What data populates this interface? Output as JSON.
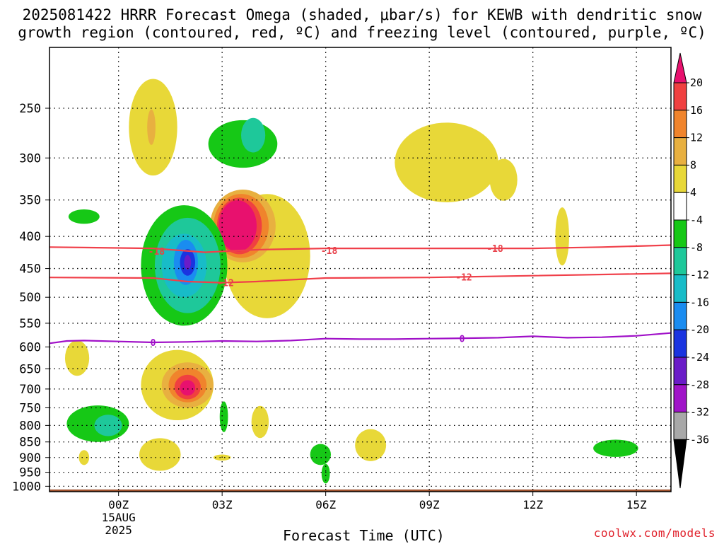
{
  "title_line1": "2025081422 HRRR Forecast Omega (shaded, μbar/s) for KEWB with dendritic snow",
  "title_line2": "growth region (contoured, red, ºC) and freezing level (contoured, purple, ºC)",
  "credit": "coolwx.com/models",
  "chart_data": {
    "type": "contour",
    "xlabel": "Forecast Time (UTC)",
    "x_range_hours": [
      -2,
      16
    ],
    "x_ticks": [
      {
        "hour": 0,
        "label": "00Z",
        "sub": [
          "15AUG",
          "2025"
        ]
      },
      {
        "hour": 3,
        "label": "03Z"
      },
      {
        "hour": 6,
        "label": "06Z"
      },
      {
        "hour": 9,
        "label": "09Z"
      },
      {
        "hour": 12,
        "label": "12Z"
      },
      {
        "hour": 15,
        "label": "15Z"
      }
    ],
    "y_scale": "log-pressure (mb)",
    "y_range_mb": [
      1020,
      200
    ],
    "y_ticks": [
      250,
      300,
      350,
      400,
      450,
      500,
      550,
      600,
      650,
      700,
      750,
      800,
      850,
      900,
      950,
      1000
    ],
    "grid": true,
    "colorbar": {
      "levels": [
        20,
        16,
        12,
        8,
        4,
        -4,
        -8,
        -12,
        -16,
        -20,
        -24,
        -28,
        -32,
        -36
      ],
      "colors": [
        "#e8116e",
        "#f04040",
        "#f0842c",
        "#e8b040",
        "#e8d838",
        "#ffffff",
        "#16c816",
        "#1ec89a",
        "#18bcc8",
        "#1a8cf0",
        "#1a34e0",
        "#6a1cc8",
        "#a014c8",
        "#a8a8a8",
        "#000000"
      ]
    },
    "red_contours": [
      {
        "label": "-18",
        "points": [
          [
            -2,
            416
          ],
          [
            1,
            418
          ],
          [
            2.5,
            424
          ],
          [
            4,
            420
          ],
          [
            6,
            418
          ],
          [
            9,
            418
          ],
          [
            12,
            418
          ],
          [
            14,
            416
          ],
          [
            16,
            413
          ]
        ]
      },
      {
        "label": "-12",
        "points": [
          [
            -2,
            465
          ],
          [
            1,
            466
          ],
          [
            2,
            472
          ],
          [
            3,
            474
          ],
          [
            4,
            472
          ],
          [
            6,
            466
          ],
          [
            9,
            465
          ],
          [
            12,
            462
          ],
          [
            16,
            458
          ]
        ]
      }
    ],
    "purple_contours": [
      {
        "label": "0",
        "points": [
          [
            -2,
            592
          ],
          [
            -1.5,
            587
          ],
          [
            -1,
            586
          ],
          [
            0,
            588
          ],
          [
            1,
            590
          ],
          [
            2,
            589
          ],
          [
            3,
            587
          ],
          [
            4,
            588
          ],
          [
            5,
            586
          ],
          [
            6,
            582
          ],
          [
            7,
            583
          ],
          [
            8,
            583
          ],
          [
            9,
            582
          ],
          [
            10,
            581
          ],
          [
            11,
            580
          ],
          [
            12,
            577
          ],
          [
            13,
            580
          ],
          [
            14,
            579
          ],
          [
            15,
            576
          ],
          [
            16,
            570
          ]
        ]
      }
    ],
    "contour_labels": [
      {
        "text": "-18",
        "hour": 1.1,
        "mb": 422,
        "color": "#e8404a"
      },
      {
        "text": "-18",
        "hour": 6.1,
        "mb": 421,
        "color": "#e8404a"
      },
      {
        "text": "-18",
        "hour": 10.9,
        "mb": 418,
        "color": "#e8404a"
      },
      {
        "text": "-12",
        "hour": 3.1,
        "mb": 474,
        "color": "#e8404a"
      },
      {
        "text": "-12",
        "hour": 10.0,
        "mb": 464,
        "color": "#e8404a"
      },
      {
        "text": "0",
        "hour": 1.0,
        "mb": 590,
        "color": "#a010c8"
      },
      {
        "text": "0",
        "hour": 9.95,
        "mb": 582,
        "color": "#a010c8"
      }
    ],
    "shaded_features": [
      {
        "level": 4,
        "hour": 1.0,
        "mb": 268,
        "rx": 0.7,
        "ry": 52,
        "color": "#e8d838"
      },
      {
        "level": 8,
        "hour": 0.95,
        "mb": 268,
        "rx": 0.12,
        "ry": 18,
        "color": "#e8b040"
      },
      {
        "level": -4,
        "hour": 3.6,
        "mb": 285,
        "rx": 1.0,
        "ry": 26,
        "color": "#16c816"
      },
      {
        "level": -8,
        "hour": 3.9,
        "mb": 276,
        "rx": 0.35,
        "ry": 18,
        "color": "#1ec89a"
      },
      {
        "level": -4,
        "hour": -1.0,
        "mb": 372,
        "rx": 0.45,
        "ry": 10,
        "color": "#16c816"
      },
      {
        "level": 4,
        "hour": 9.5,
        "mb": 305,
        "rx": 1.5,
        "ry": 48,
        "color": "#e8d838"
      },
      {
        "level": 4,
        "hour": 11.15,
        "mb": 325,
        "rx": 0.4,
        "ry": 26,
        "color": "#e8d838"
      },
      {
        "level": 4,
        "hour": 12.85,
        "mb": 400,
        "rx": 0.2,
        "ry": 45,
        "color": "#e8d838"
      },
      {
        "level": 4,
        "hour": 4.3,
        "mb": 430,
        "rx": 1.25,
        "ry": 110,
        "color": "#e8d838"
      },
      {
        "level": 8,
        "hour": 3.6,
        "mb": 385,
        "rx": 0.95,
        "ry": 55,
        "color": "#e8b040"
      },
      {
        "level": 12,
        "hour": 3.55,
        "mb": 385,
        "rx": 0.8,
        "ry": 48,
        "color": "#f0842c"
      },
      {
        "level": 16,
        "hour": 3.5,
        "mb": 385,
        "rx": 0.65,
        "ry": 42,
        "color": "#f04040"
      },
      {
        "level": 20,
        "hour": 3.45,
        "mb": 385,
        "rx": 0.55,
        "ry": 38,
        "color": "#e8116e"
      },
      {
        "level": -4,
        "hour": 1.9,
        "mb": 445,
        "rx": 1.25,
        "ry": 110,
        "color": "#16c816"
      },
      {
        "level": -8,
        "hour": 2.0,
        "mb": 445,
        "rx": 0.95,
        "ry": 85,
        "color": "#1ec89a"
      },
      {
        "level": -12,
        "hour": 1.9,
        "mb": 445,
        "rx": 0.65,
        "ry": 55,
        "color": "#18bcc8"
      },
      {
        "level": -16,
        "hour": 1.95,
        "mb": 440,
        "rx": 0.35,
        "ry": 38,
        "color": "#1a8cf0"
      },
      {
        "level": -20,
        "hour": 2.0,
        "mb": 440,
        "rx": 0.22,
        "ry": 22,
        "color": "#1a34e0"
      },
      {
        "level": -24,
        "hour": 2.0,
        "mb": 440,
        "rx": 0.1,
        "ry": 12,
        "color": "#6a1cc8"
      },
      {
        "level": 4,
        "hour": -1.2,
        "mb": 625,
        "rx": 0.35,
        "ry": 42,
        "color": "#e8d838"
      },
      {
        "level": 4,
        "hour": 1.7,
        "mb": 690,
        "rx": 1.05,
        "ry": 95,
        "color": "#e8d838"
      },
      {
        "level": 8,
        "hour": 2.0,
        "mb": 690,
        "rx": 0.75,
        "ry": 60,
        "color": "#e8b040"
      },
      {
        "level": 12,
        "hour": 2.0,
        "mb": 690,
        "rx": 0.55,
        "ry": 45,
        "color": "#f0842c"
      },
      {
        "level": 16,
        "hour": 2.0,
        "mb": 695,
        "rx": 0.38,
        "ry": 32,
        "color": "#f04040"
      },
      {
        "level": 20,
        "hour": 2.0,
        "mb": 697,
        "rx": 0.22,
        "ry": 20,
        "color": "#e8116e"
      },
      {
        "level": -4,
        "hour": -0.6,
        "mb": 795,
        "rx": 0.9,
        "ry": 55,
        "color": "#16c816"
      },
      {
        "level": -8,
        "hour": -0.3,
        "mb": 800,
        "rx": 0.4,
        "ry": 32,
        "color": "#1ec89a"
      },
      {
        "level": 4,
        "hour": 1.2,
        "mb": 890,
        "rx": 0.6,
        "ry": 55,
        "color": "#e8d838"
      },
      {
        "level": 4,
        "hour": -1.0,
        "mb": 900,
        "rx": 0.15,
        "ry": 25,
        "color": "#e8d838"
      },
      {
        "level": 4,
        "hour": 3.0,
        "mb": 900,
        "rx": 0.25,
        "ry": 10,
        "color": "#e8d838"
      },
      {
        "level": -4,
        "hour": 3.05,
        "mb": 775,
        "rx": 0.12,
        "ry": 45,
        "color": "#16c816"
      },
      {
        "level": 4,
        "hour": 4.1,
        "mb": 790,
        "rx": 0.25,
        "ry": 48,
        "color": "#e8d838"
      },
      {
        "level": -4,
        "hour": 5.85,
        "mb": 890,
        "rx": 0.3,
        "ry": 35,
        "color": "#16c816"
      },
      {
        "level": -4,
        "hour": 6.0,
        "mb": 955,
        "rx": 0.12,
        "ry": 35,
        "color": "#16c816"
      },
      {
        "level": 4,
        "hour": 7.3,
        "mb": 860,
        "rx": 0.45,
        "ry": 52,
        "color": "#e8d838"
      },
      {
        "level": -4,
        "hour": 14.4,
        "mb": 870,
        "rx": 0.65,
        "ry": 28,
        "color": "#16c816"
      }
    ],
    "terrain": {
      "color": "#a0522d",
      "surface_mb": 1012
    }
  }
}
